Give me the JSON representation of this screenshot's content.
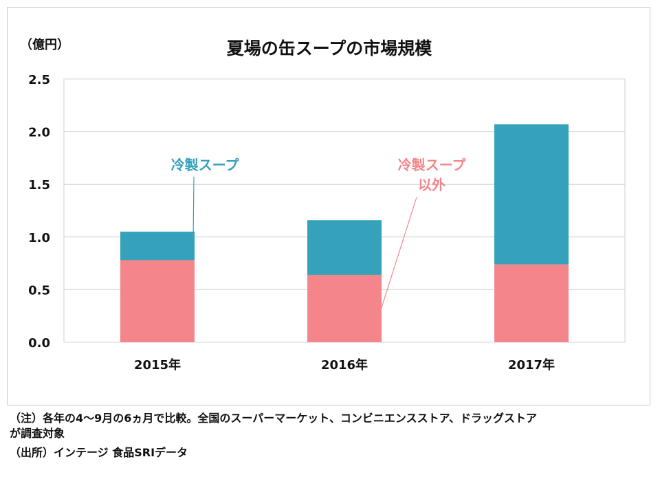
{
  "chart_data": {
    "type": "bar",
    "stacked": true,
    "title": "夏場の缶スープの市場規模",
    "unit_label": "（億円）",
    "categories": [
      "2015年",
      "2016年",
      "2017年"
    ],
    "series": [
      {
        "name": "冷製スープ以外",
        "values": [
          0.78,
          0.64,
          0.74
        ],
        "color": "#f4868b"
      },
      {
        "name": "冷製スープ",
        "values": [
          0.27,
          0.52,
          1.33
        ],
        "color": "#36a1bb"
      }
    ],
    "ylim": [
      0,
      2.5
    ],
    "yticks": [
      "0.0",
      "0.5",
      "1.0",
      "1.5",
      "2.0",
      "2.5"
    ],
    "ytick_values": [
      0,
      0.5,
      1.0,
      1.5,
      2.0,
      2.5
    ],
    "grid": true,
    "annotations": [
      {
        "series": "冷製スープ",
        "lines": [
          "冷製スープ"
        ],
        "color": "#36a1bb"
      },
      {
        "series": "冷製スープ以外",
        "lines": [
          "冷製スープ",
          "以外"
        ],
        "color": "#f4868b"
      }
    ]
  },
  "footnotes": {
    "note_line1": "（注）各年の4～9月の6ヵ月で比較。全国のスーパーマーケット、コンビニエンスストア、ドラッグストア",
    "note_line2": "が調査対象",
    "source": "（出所）インテージ 食品SRIデータ"
  }
}
